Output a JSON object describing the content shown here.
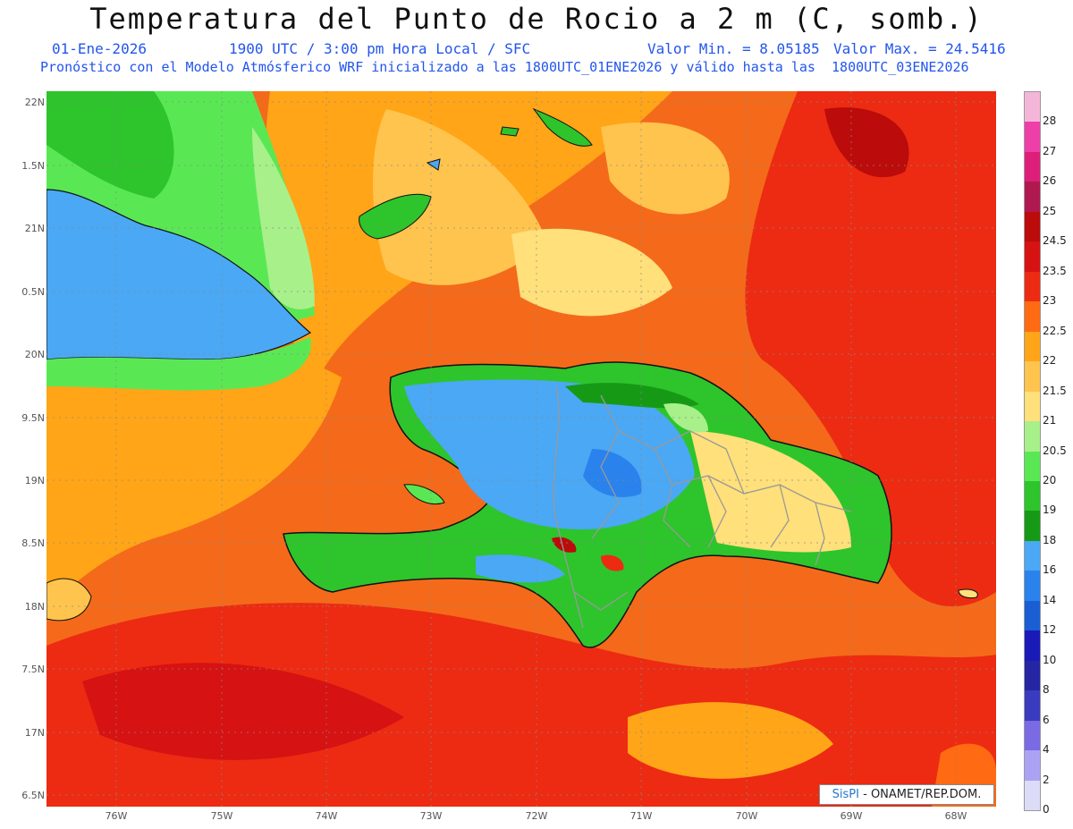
{
  "header": {
    "title": "Temperatura del Punto de Rocio a 2 m (C, somb.)",
    "date": "01-Ene-2026",
    "time": "1900 UTC / 3:00 pm Hora Local / SFC",
    "valmin": "Valor Min. = 8.05185",
    "valmax": "Valor Max. = 24.5416",
    "model": "Pronóstico con el Modelo Atmósferico WRF inicializado a las 1800UTC_01ENE2026 y válido hasta las  1800UTC_03ENE2026"
  },
  "axes": {
    "lat_labels": [
      "22N",
      "1.5N",
      "21N",
      "0.5N",
      "20N",
      "9.5N",
      "19N",
      "8.5N",
      "18N",
      "7.5N",
      "17N",
      "6.5N"
    ],
    "lon_labels": [
      "76W",
      "75W",
      "74W",
      "73W",
      "72W",
      "71W",
      "70W",
      "69W",
      "68W"
    ]
  },
  "legend": {
    "labels": [
      "28",
      "27",
      "26",
      "25",
      "24.5",
      "23.5",
      "23",
      "22.5",
      "22",
      "21.5",
      "21",
      "20.5",
      "20",
      "19",
      "18",
      "16",
      "14",
      "12",
      "10",
      "8",
      "6",
      "4",
      "2",
      "0"
    ],
    "colors": [
      "#f4b6d8",
      "#ee3fa8",
      "#dd1f7a",
      "#b01850",
      "#bb0b0b",
      "#d61212",
      "#ec2b12",
      "#ff6a12",
      "#ffa517",
      "#ffc44e",
      "#ffe07a",
      "#a8f08a",
      "#59e854",
      "#2ec42c",
      "#169a16",
      "#4aa8f4",
      "#2a82ec",
      "#1a5ed4",
      "#1a1ab8",
      "#2626a4",
      "#3b3bc0",
      "#7a6ae4",
      "#aca2f4",
      "#dcdcf8"
    ]
  },
  "credit": {
    "brand": "SisPI",
    "text": " - ONAMET/REP.DOM."
  }
}
